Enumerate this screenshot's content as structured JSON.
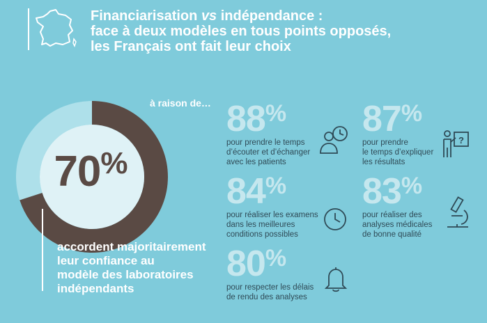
{
  "header": {
    "title_line1_a": "Financiarisation ",
    "title_line1_vs": "vs",
    "title_line1_b": " indépendance :",
    "title_line2": "face à deux modèles en tous points opposés,",
    "title_line3": "les Français ont fait leur choix"
  },
  "main_stat": {
    "value": "70",
    "percent_sign": "%",
    "fraction": 0.7,
    "caption_lines": [
      "accordent majoritairement",
      "leur confiance au",
      "modèle des laboratoires",
      "indépendants"
    ]
  },
  "intro": "à raison de…",
  "stats": [
    {
      "value": "88",
      "sign": "%",
      "lines": [
        "pour prendre le temps",
        "d’écouter et d’échanger",
        "avec les patients"
      ],
      "icon": "doctor-clock-icon"
    },
    {
      "value": "87",
      "sign": "%",
      "lines": [
        "pour prendre",
        "le temps d’expliquer",
        "les résultats"
      ],
      "icon": "presenter-question-icon"
    },
    {
      "value": "84",
      "sign": "%",
      "lines": [
        "pour réaliser les examens",
        "dans les meilleures",
        "conditions possibles"
      ],
      "icon": "clock-icon"
    },
    {
      "value": "83",
      "sign": "%",
      "lines": [
        "pour réaliser des",
        "analyses médicales",
        "de bonne qualité"
      ],
      "icon": "microscope-icon"
    },
    {
      "value": "80",
      "sign": "%",
      "lines": [
        "pour respecter les délais",
        "de rendu des analyses"
      ],
      "icon": "bell-icon"
    }
  ],
  "colors": {
    "background": "#7fcbdb",
    "donut_filled": "#5a4a44",
    "donut_remaining": "#aee0ea",
    "donut_center": "#dff2f6",
    "description_text": "#2f4a56"
  }
}
